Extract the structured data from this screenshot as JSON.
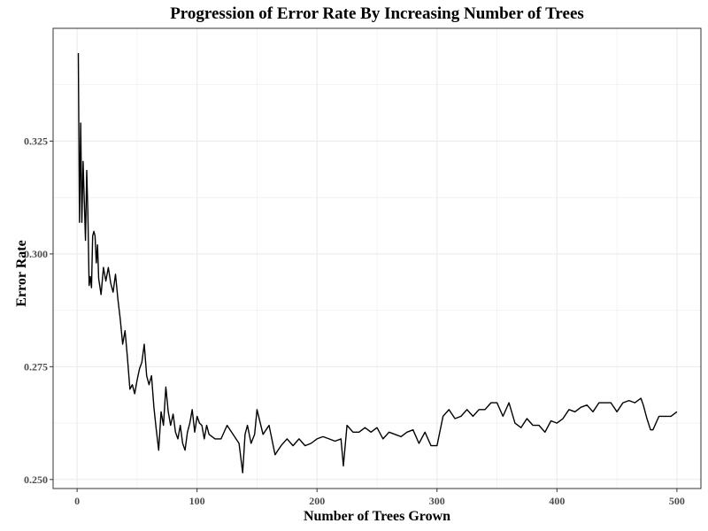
{
  "chart_data": {
    "type": "line",
    "title": "Progression of Error Rate By Increasing Number of Trees",
    "xlabel": "Number of Trees Grown",
    "ylabel": "Error Rate",
    "xlim": [
      -20,
      520
    ],
    "ylim": [
      0.248,
      0.35
    ],
    "xticks": [
      0,
      100,
      200,
      300,
      400,
      500
    ],
    "yticks": [
      0.25,
      0.275,
      0.3,
      0.325
    ],
    "ytick_labels": [
      "0.250",
      "0.275",
      "0.300",
      "0.325"
    ],
    "grid": true,
    "line_color": "#000000",
    "grid_color": "#ebebeb",
    "series": [
      {
        "x": [
          1,
          2,
          3,
          4,
          5,
          6,
          7,
          8,
          9,
          10,
          11,
          12,
          13,
          14,
          15,
          16,
          17,
          18,
          20,
          22,
          24,
          26,
          28,
          30,
          32,
          34,
          36,
          38,
          40,
          42,
          44,
          46,
          48,
          50,
          52,
          54,
          56,
          58,
          60,
          62,
          64,
          66,
          68,
          70,
          72,
          74,
          76,
          78,
          80,
          82,
          84,
          86,
          88,
          90,
          92,
          94,
          96,
          98,
          100,
          102,
          104,
          106,
          108,
          110,
          115,
          120,
          125,
          130,
          135,
          138,
          140,
          142,
          145,
          148,
          150,
          155,
          160,
          165,
          170,
          175,
          180,
          185,
          190,
          195,
          200,
          205,
          210,
          215,
          220,
          222,
          225,
          230,
          235,
          240,
          245,
          250,
          255,
          260,
          265,
          270,
          275,
          280,
          285,
          290,
          295,
          300,
          305,
          310,
          315,
          320,
          325,
          330,
          335,
          340,
          345,
          350,
          355,
          360,
          365,
          370,
          375,
          380,
          385,
          390,
          395,
          400,
          405,
          410,
          415,
          420,
          425,
          430,
          435,
          440,
          445,
          450,
          455,
          460,
          465,
          470,
          472,
          475,
          478,
          480,
          485,
          490,
          495,
          500
        ],
        "y": [
          0.3445,
          0.307,
          0.329,
          0.307,
          0.3205,
          0.312,
          0.303,
          0.3185,
          0.309,
          0.293,
          0.295,
          0.2925,
          0.304,
          0.305,
          0.304,
          0.298,
          0.302,
          0.2945,
          0.291,
          0.297,
          0.294,
          0.297,
          0.2935,
          0.2915,
          0.2955,
          0.29,
          0.2855,
          0.28,
          0.283,
          0.277,
          0.27,
          0.271,
          0.269,
          0.272,
          0.2745,
          0.276,
          0.28,
          0.273,
          0.271,
          0.273,
          0.266,
          0.261,
          0.2565,
          0.265,
          0.262,
          0.2705,
          0.265,
          0.262,
          0.2645,
          0.2605,
          0.259,
          0.262,
          0.258,
          0.2565,
          0.2605,
          0.2625,
          0.2655,
          0.2605,
          0.264,
          0.2625,
          0.262,
          0.259,
          0.262,
          0.26,
          0.259,
          0.259,
          0.262,
          0.26,
          0.258,
          0.2515,
          0.26,
          0.262,
          0.258,
          0.26,
          0.2655,
          0.26,
          0.262,
          0.2555,
          0.2575,
          0.259,
          0.2575,
          0.259,
          0.2575,
          0.258,
          0.259,
          0.2595,
          0.259,
          0.2585,
          0.259,
          0.253,
          0.262,
          0.2605,
          0.2605,
          0.2615,
          0.2605,
          0.2615,
          0.259,
          0.2605,
          0.26,
          0.2595,
          0.2605,
          0.261,
          0.258,
          0.2605,
          0.2575,
          0.2575,
          0.264,
          0.2655,
          0.2635,
          0.264,
          0.2655,
          0.264,
          0.2655,
          0.2655,
          0.267,
          0.267,
          0.264,
          0.267,
          0.2625,
          0.2615,
          0.2635,
          0.262,
          0.262,
          0.2605,
          0.263,
          0.2625,
          0.2635,
          0.2655,
          0.265,
          0.266,
          0.2665,
          0.265,
          0.267,
          0.267,
          0.267,
          0.265,
          0.267,
          0.2675,
          0.267,
          0.268,
          0.2665,
          0.2635,
          0.261,
          0.261,
          0.264,
          0.264,
          0.264,
          0.265
        ]
      }
    ]
  }
}
